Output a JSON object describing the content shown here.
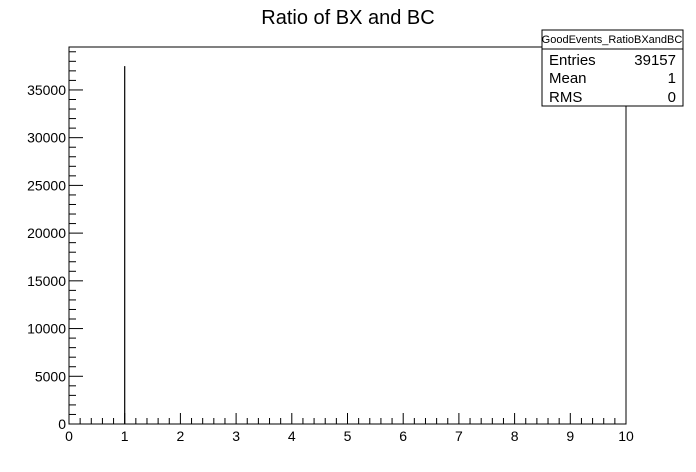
{
  "chart_data": {
    "type": "bar",
    "title": "Ratio of BX and BC",
    "xlabel": "",
    "ylabel": "",
    "xlim": [
      0,
      10
    ],
    "ylim": [
      0,
      39500
    ],
    "x_ticks": [
      0,
      1,
      2,
      3,
      4,
      5,
      6,
      7,
      8,
      9,
      10
    ],
    "y_ticks": [
      0,
      5000,
      10000,
      15000,
      20000,
      25000,
      30000,
      35000
    ],
    "x_tick_labels": [
      "0",
      "1",
      "2",
      "3",
      "4",
      "5",
      "6",
      "7",
      "8",
      "9",
      "10"
    ],
    "y_tick_labels": [
      "0",
      "5000",
      "10000",
      "15000",
      "20000",
      "25000",
      "30000",
      "35000"
    ],
    "series": [
      {
        "x": [
          1
        ],
        "values": [
          37500
        ]
      }
    ],
    "grid": false,
    "legend_position": "top-right"
  },
  "stats_box": {
    "name": "GoodEvents_RatioBXandBC",
    "rows": [
      {
        "label": "Entries",
        "value": "39157"
      },
      {
        "label": "Mean",
        "value": "1"
      },
      {
        "label": "RMS",
        "value": "0"
      }
    ]
  }
}
